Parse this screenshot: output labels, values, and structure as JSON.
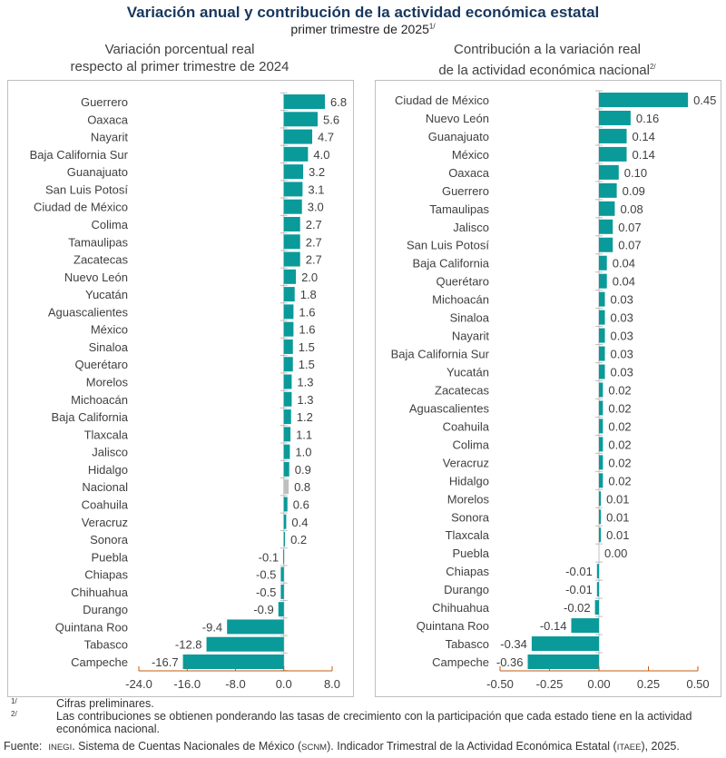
{
  "title": "Variación anual y contribución de la actividad económica estatal",
  "subtitle": "primer trimestre de 2025",
  "subtitle_mark": "1/",
  "colors": {
    "bar": "#0a9a9a",
    "national_bar": "#bfbfbf",
    "axis": "#c55a11",
    "zero_line": "#bfbfbf",
    "title": "#17375e"
  },
  "chart_data": [
    {
      "type": "bar",
      "orientation": "horizontal",
      "title_line1": "Variación porcentual real",
      "title_line2": "respecto al primer trimestre de 2024",
      "categories": [
        "Guerrero",
        "Oaxaca",
        "Nayarit",
        "Baja California Sur",
        "Guanajuato",
        "San Luis Potosí",
        "Ciudad de México",
        "Colima",
        "Tamaulipas",
        "Zacatecas",
        "Nuevo León",
        "Yucatán",
        "Aguascalientes",
        "México",
        "Sinaloa",
        "Querétaro",
        "Morelos",
        "Michoacán",
        "Baja California",
        "Tlaxcala",
        "Jalisco",
        "Hidalgo",
        "Nacional",
        "Coahuila",
        "Veracruz",
        "Sonora",
        "Puebla",
        "Chiapas",
        "Chihuahua",
        "Durango",
        "Quintana Roo",
        "Tabasco",
        "Campeche"
      ],
      "values": [
        6.8,
        5.6,
        4.7,
        4.0,
        3.2,
        3.1,
        3.0,
        2.7,
        2.7,
        2.7,
        2.0,
        1.8,
        1.6,
        1.6,
        1.5,
        1.5,
        1.3,
        1.3,
        1.2,
        1.1,
        1.0,
        0.9,
        0.8,
        0.6,
        0.4,
        0.2,
        -0.1,
        -0.5,
        -0.5,
        -0.9,
        -9.4,
        -12.8,
        -16.7
      ],
      "labels": [
        "6.8",
        "5.6",
        "4.7",
        "4.0",
        "3.2",
        "3.1",
        "3.0",
        "2.7",
        "2.7",
        "2.7",
        "2.0",
        "1.8",
        "1.6",
        "1.6",
        "1.5",
        "1.5",
        "1.3",
        "1.3",
        "1.2",
        "1.1",
        "1.0",
        "0.9",
        "0.8",
        "0.6",
        "0.4",
        "0.2",
        "-0.1",
        "-0.5",
        "-0.5",
        "-0.9",
        "-9.4",
        "-12.8",
        "-16.7"
      ],
      "highlight": "Nacional",
      "xlim": [
        -24,
        8
      ],
      "xticks": [
        "-24.0",
        "-16.0",
        "-8.0",
        "0.0",
        "8.0"
      ],
      "xtick_values": [
        -24,
        -16,
        -8,
        0,
        8
      ],
      "grid": false
    },
    {
      "type": "bar",
      "orientation": "horizontal",
      "title_line1": "Contribución a la variación real",
      "title_line2": "de la actividad económica nacional",
      "title_mark": "2/",
      "categories": [
        "Ciudad de México",
        "Nuevo León",
        "Guanajuato",
        "México",
        "Oaxaca",
        "Guerrero",
        "Tamaulipas",
        "Jalisco",
        "San Luis Potosí",
        "Baja California",
        "Querétaro",
        "Michoacán",
        "Sinaloa",
        "Nayarit",
        "Baja California Sur",
        "Yucatán",
        "Zacatecas",
        "Aguascalientes",
        "Coahuila",
        "Colima",
        "Veracruz",
        "Hidalgo",
        "Morelos",
        "Sonora",
        "Tlaxcala",
        "Puebla",
        "Chiapas",
        "Durango",
        "Chihuahua",
        "Quintana Roo",
        "Tabasco",
        "Campeche"
      ],
      "values": [
        0.45,
        0.16,
        0.14,
        0.14,
        0.1,
        0.09,
        0.08,
        0.07,
        0.07,
        0.04,
        0.04,
        0.03,
        0.03,
        0.03,
        0.03,
        0.03,
        0.02,
        0.02,
        0.02,
        0.02,
        0.02,
        0.02,
        0.01,
        0.01,
        0.01,
        0.0,
        -0.01,
        -0.01,
        -0.02,
        -0.14,
        -0.34,
        -0.36
      ],
      "labels": [
        "0.45",
        "0.16",
        "0.14",
        "0.14",
        "0.10",
        "0.09",
        "0.08",
        "0.07",
        "0.07",
        "0.04",
        "0.04",
        "0.03",
        "0.03",
        "0.03",
        "0.03",
        "0.03",
        "0.02",
        "0.02",
        "0.02",
        "0.02",
        "0.02",
        "0.02",
        "0.01",
        "0.01",
        "0.01",
        "0.00",
        "-0.01",
        "-0.01",
        "-0.02",
        "-0.14",
        "-0.34",
        "-0.36"
      ],
      "xlim": [
        -0.5,
        0.5
      ],
      "xticks": [
        "-0.50",
        "-0.25",
        "0.00",
        "0.25",
        "0.50"
      ],
      "xtick_values": [
        -0.5,
        -0.25,
        0,
        0.25,
        0.5
      ],
      "grid": false
    }
  ],
  "notes": [
    {
      "mark": "1/",
      "text": "Cifras preliminares."
    },
    {
      "mark": "2/",
      "text": "Las contribuciones se obtienen ponderando las tasas de crecimiento con la participación que cada estado tiene en la actividad económica nacional."
    }
  ],
  "source": {
    "label": "Fuente:",
    "org": "INEGI",
    "text1": ". Sistema de Cuentas Nacionales de México (",
    "abbr1": "SCNM",
    "text2": "). Indicador Trimestral de la Actividad Económica Estatal (",
    "abbr2": "ITAEE",
    "text3": "), 2025."
  }
}
